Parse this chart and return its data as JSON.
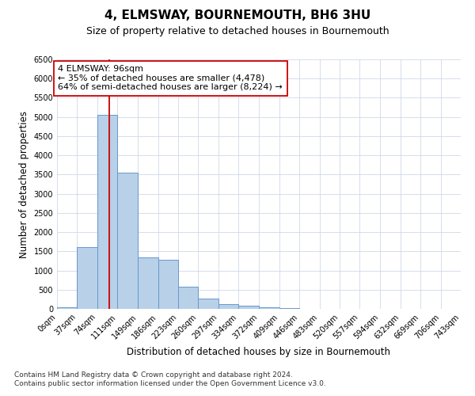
{
  "title": "4, ELMSWAY, BOURNEMOUTH, BH6 3HU",
  "subtitle": "Size of property relative to detached houses in Bournemouth",
  "xlabel": "Distribution of detached houses by size in Bournemouth",
  "ylabel": "Number of detached properties",
  "bin_edges": [
    0,
    37,
    74,
    111,
    149,
    186,
    223,
    260,
    297,
    334,
    372,
    409,
    446,
    483,
    520,
    557,
    594,
    632,
    669,
    706,
    743
  ],
  "bin_labels": [
    "0sqm",
    "37sqm",
    "74sqm",
    "111sqm",
    "149sqm",
    "186sqm",
    "223sqm",
    "260sqm",
    "297sqm",
    "334sqm",
    "372sqm",
    "409sqm",
    "446sqm",
    "483sqm",
    "520sqm",
    "557sqm",
    "594sqm",
    "632sqm",
    "669sqm",
    "706sqm",
    "743sqm"
  ],
  "bar_heights": [
    50,
    1600,
    5050,
    3550,
    1350,
    1280,
    580,
    265,
    120,
    75,
    50,
    20,
    10,
    5,
    0,
    0,
    0,
    0,
    0,
    0
  ],
  "bar_color": "#b8d0e8",
  "bar_edgecolor": "#6699cc",
  "grid_color": "#d0d8e8",
  "property_size": 96,
  "property_label": "4 ELMSWAY: 96sqm",
  "annotation_line1": "← 35% of detached houses are smaller (4,478)",
  "annotation_line2": "64% of semi-detached houses are larger (8,224) →",
  "vline_color": "#cc0000",
  "annotation_box_edgecolor": "#cc0000",
  "ylim": [
    0,
    6500
  ],
  "yticks": [
    0,
    500,
    1000,
    1500,
    2000,
    2500,
    3000,
    3500,
    4000,
    4500,
    5000,
    5500,
    6000,
    6500
  ],
  "footnote1": "Contains HM Land Registry data © Crown copyright and database right 2024.",
  "footnote2": "Contains public sector information licensed under the Open Government Licence v3.0.",
  "title_fontsize": 11,
  "subtitle_fontsize": 9,
  "axis_label_fontsize": 8.5,
  "tick_fontsize": 7,
  "annotation_fontsize": 8,
  "footnote_fontsize": 6.5
}
